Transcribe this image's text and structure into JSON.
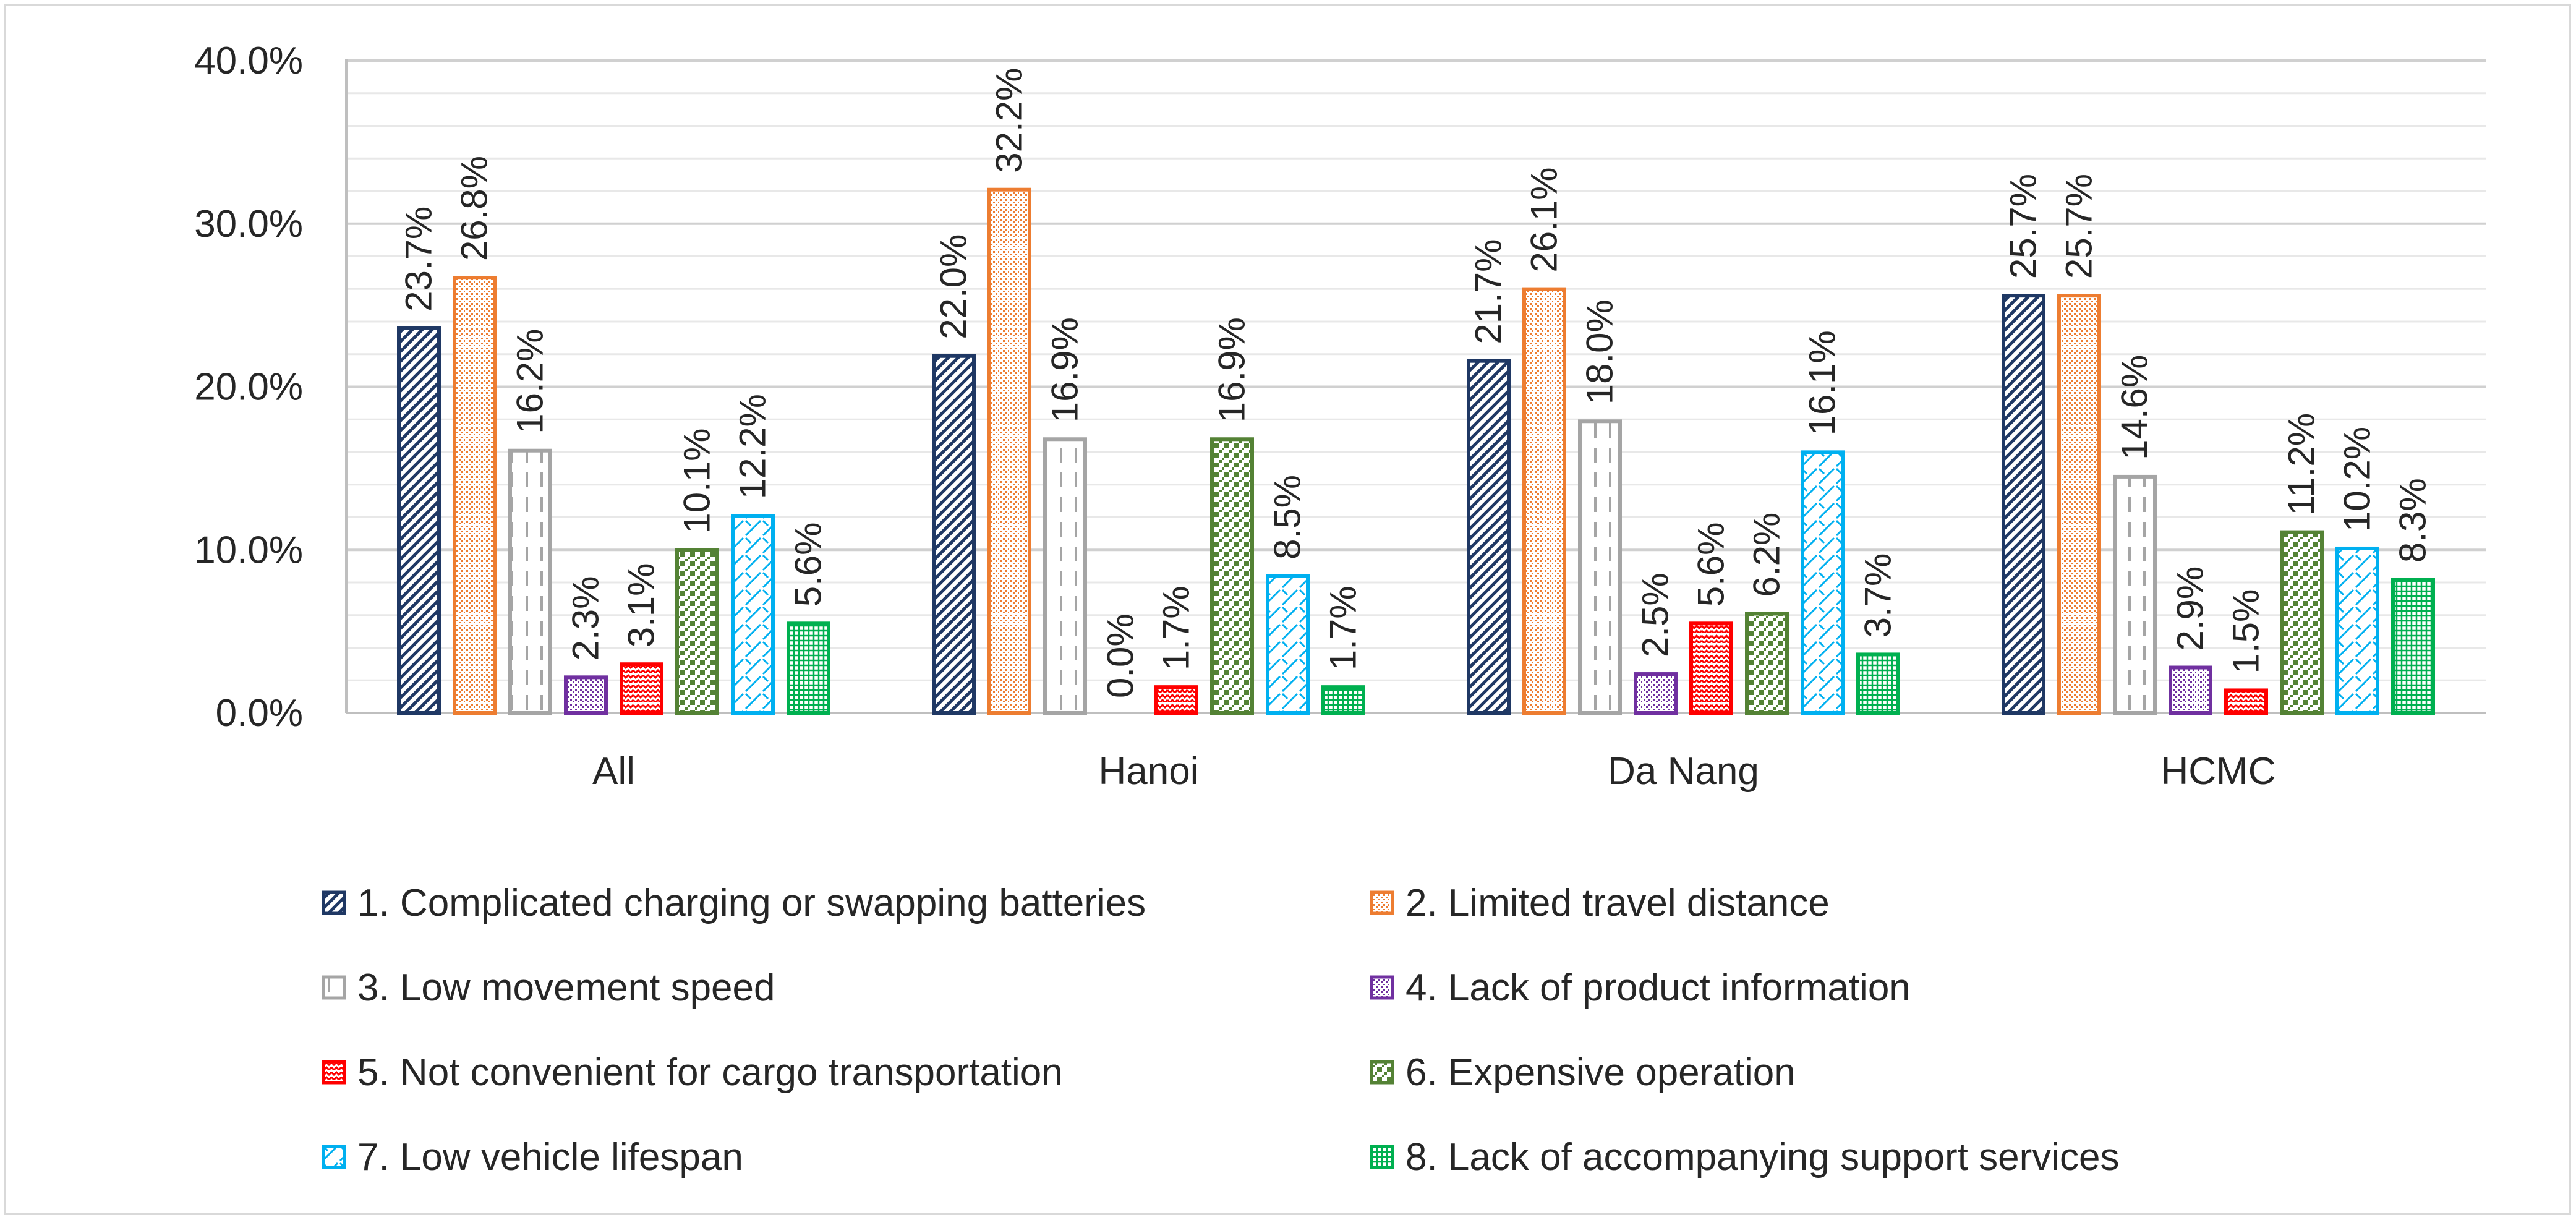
{
  "chart_data": {
    "type": "bar",
    "title": "",
    "xlabel": "",
    "ylabel": "",
    "ylim": [
      0,
      40
    ],
    "y_ticks": [
      "0.0%",
      "10.0%",
      "20.0%",
      "30.0%",
      "40.0%"
    ],
    "grid": "horizontal",
    "legend_position": "bottom",
    "categories": [
      "All",
      "Hanoi",
      "Da Nang",
      "HCMC"
    ],
    "series": [
      {
        "name": "1. Complicated charging or swapping batteries",
        "color": "#1f3864",
        "pattern": "diag",
        "values": [
          23.7,
          22.0,
          21.7,
          25.7
        ],
        "labels": [
          "23.7%",
          "22.0%",
          "21.7%",
          "25.7%"
        ]
      },
      {
        "name": "2. Limited travel distance",
        "color": "#ed7d31",
        "pattern": "dots",
        "values": [
          26.8,
          32.2,
          26.1,
          25.7
        ],
        "labels": [
          "26.8%",
          "32.2%",
          "26.1%",
          "25.7%"
        ]
      },
      {
        "name": "3. Low movement speed",
        "color": "#a5a5a5",
        "pattern": "dash",
        "values": [
          16.2,
          16.9,
          18.0,
          14.6
        ],
        "labels": [
          "16.2%",
          "16.9%",
          "18.0%",
          "14.6%"
        ]
      },
      {
        "name": "4. Lack of product information",
        "color": "#7030a0",
        "pattern": "dots",
        "values": [
          2.3,
          0.0,
          2.5,
          2.9
        ],
        "labels": [
          "2.3%",
          "0.0%",
          "2.5%",
          "2.9%"
        ]
      },
      {
        "name": "5.  Not convenient for cargo transportation",
        "color": "#ff0000",
        "pattern": "zigzag",
        "values": [
          3.1,
          1.7,
          5.6,
          1.5
        ],
        "labels": [
          "3.1%",
          "1.7%",
          "5.6%",
          "1.5%"
        ]
      },
      {
        "name": "6. Expensive operation",
        "color": "#548235",
        "pattern": "checker",
        "values": [
          10.1,
          16.9,
          6.2,
          11.2
        ],
        "labels": [
          "10.1%",
          "16.9%",
          "6.2%",
          "11.2%"
        ]
      },
      {
        "name": "7. Low vehicle lifespan",
        "color": "#00b0f0",
        "pattern": "wave",
        "values": [
          12.2,
          8.5,
          16.1,
          10.2
        ],
        "labels": [
          "12.2%",
          "8.5%",
          "16.1%",
          "10.2%"
        ]
      },
      {
        "name": "8. Lack of accompanying support services",
        "color": "#00b050",
        "pattern": "grid",
        "values": [
          5.6,
          1.7,
          3.7,
          8.3
        ],
        "labels": [
          "5.6%",
          "1.7%",
          "3.7%",
          "8.3%"
        ]
      }
    ]
  }
}
